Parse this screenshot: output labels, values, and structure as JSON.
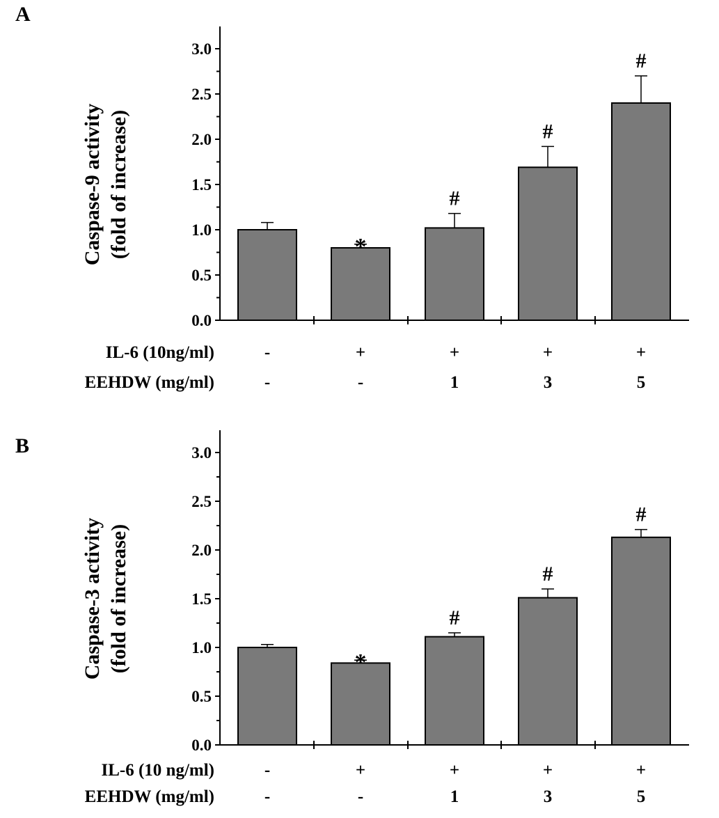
{
  "colors": {
    "bar": "#7a7a7a",
    "axis": "#000000"
  },
  "chart_data": [
    {
      "type": "bar",
      "panel_label": "A",
      "ylabel_lines": [
        "Caspase-9  activity",
        "(fold of increase)"
      ],
      "ylim": [
        0,
        3.0
      ],
      "yticks": [
        "0.0",
        "0.5",
        "1.0",
        "1.5",
        "2.0",
        "2.5",
        "3.0"
      ],
      "grid": false,
      "values": [
        1.0,
        0.8,
        1.02,
        1.69,
        2.4
      ],
      "errors": [
        0.08,
        0.04,
        0.16,
        0.23,
        0.3
      ],
      "annotations": [
        "",
        "*",
        "#",
        "#",
        "#"
      ],
      "condition_rows": [
        {
          "label": "IL-6 (10ng/ml)",
          "values": [
            "-",
            "+",
            "+",
            "+",
            "+"
          ]
        },
        {
          "label": "EEHDW (mg/ml)",
          "values": [
            "-",
            "-",
            "1",
            "3",
            "5"
          ]
        }
      ]
    },
    {
      "type": "bar",
      "panel_label": "B",
      "ylabel_lines": [
        "Caspase-3  activity",
        "(fold of increase)"
      ],
      "ylim": [
        0,
        3.0
      ],
      "yticks": [
        "0.0",
        "0.5",
        "1.0",
        "1.5",
        "2.0",
        "2.5",
        "3.0"
      ],
      "grid": false,
      "values": [
        1.0,
        0.84,
        1.11,
        1.51,
        2.13
      ],
      "errors": [
        0.03,
        0.03,
        0.04,
        0.09,
        0.08
      ],
      "annotations": [
        "",
        "*",
        "#",
        "#",
        "#"
      ],
      "condition_rows": [
        {
          "label": "IL-6 (10 ng/ml)",
          "values": [
            "-",
            "+",
            "+",
            "+",
            "+"
          ]
        },
        {
          "label": "EEHDW (mg/ml)",
          "values": [
            "-",
            "-",
            "1",
            "3",
            "5"
          ]
        }
      ]
    }
  ]
}
